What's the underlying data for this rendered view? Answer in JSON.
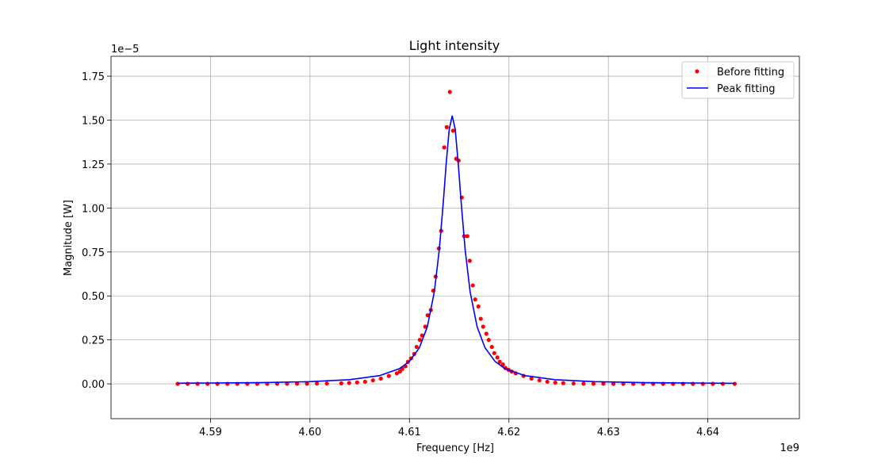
{
  "chart_data": {
    "type": "line",
    "title": "Light intensity",
    "x_label": "Frequency [Hz]",
    "y_label": "Magnitude [W]",
    "x_offset_label": "1e9",
    "y_offset_label": "1e−5",
    "xlim": [
      4.58,
      4.6492
    ],
    "ylim": [
      -0.198,
      1.863
    ],
    "xticks": [
      4.59,
      4.6,
      4.61,
      4.62,
      4.63,
      4.64
    ],
    "xtick_labels": [
      "4.59",
      "4.60",
      "4.61",
      "4.62",
      "4.63",
      "4.64"
    ],
    "yticks": [
      {
        "value": 0,
        "label": "0.00"
      },
      {
        "value": 0.25,
        "label": "0.25"
      },
      {
        "value": 0.5,
        "label": "0.50"
      },
      {
        "value": 0.75,
        "label": "0.75"
      },
      {
        "value": 1,
        "label": "1.00"
      },
      {
        "value": 1.25,
        "label": "1.25"
      },
      {
        "value": 1.5,
        "label": "1.50"
      },
      {
        "value": 1.75,
        "label": "1.75"
      }
    ],
    "grid": true,
    "legend": "upper right",
    "series": [
      {
        "name": "Before fitting",
        "color": "#ff0000",
        "mode": "markers",
        "x": [
          4.5867,
          4.5877,
          4.5887,
          4.5897,
          4.5907,
          4.5917,
          4.5927,
          4.5937,
          4.5947,
          4.5957,
          4.5967,
          4.5977,
          4.5987,
          4.5997,
          4.6007,
          4.6017,
          4.60315,
          4.60394,
          4.60474,
          4.60554,
          4.60633,
          4.60713,
          4.60793,
          4.60873,
          4.60904,
          4.60928,
          4.6096,
          4.60984,
          4.61016,
          4.61048,
          4.61072,
          4.61104,
          4.61127,
          4.61159,
          4.61183,
          4.61215,
          4.61239,
          4.61263,
          4.61295,
          4.61319,
          4.6135,
          4.61375,
          4.61406,
          4.61438,
          4.6147,
          4.61494,
          4.61526,
          4.6155,
          4.61582,
          4.61606,
          4.61637,
          4.61661,
          4.61693,
          4.61717,
          4.61741,
          4.61773,
          4.61797,
          4.61829,
          4.61853,
          4.61884,
          4.61908,
          4.6194,
          4.61964,
          4.61996,
          4.62028,
          4.62068,
          4.62147,
          4.62227,
          4.62307,
          4.62386,
          4.62466,
          4.62546,
          4.6265,
          4.6275,
          4.6285,
          4.6295,
          4.6305,
          4.6315,
          4.6325,
          4.6335,
          4.6345,
          4.6355,
          4.6365,
          4.6375,
          4.6385,
          4.6395,
          4.6405,
          4.6415,
          4.6427
        ],
        "values": [
          0,
          0,
          0,
          0,
          0,
          0,
          0,
          0,
          0,
          0,
          0.001,
          0.001,
          0.001,
          0.001,
          0.002,
          0.002,
          0.003,
          0.005,
          0.008,
          0.012,
          0.02,
          0.03,
          0.045,
          0.06,
          0.07,
          0.085,
          0.1,
          0.125,
          0.145,
          0.17,
          0.21,
          0.25,
          0.275,
          0.325,
          0.39,
          0.42,
          0.53,
          0.61,
          0.77,
          0.87,
          1.345,
          1.46,
          1.66,
          1.44,
          1.28,
          1.27,
          1.06,
          0.84,
          0.84,
          0.7,
          0.56,
          0.48,
          0.44,
          0.37,
          0.325,
          0.285,
          0.25,
          0.21,
          0.175,
          0.15,
          0.125,
          0.11,
          0.09,
          0.08,
          0.07,
          0.06,
          0.045,
          0.03,
          0.02,
          0.012,
          0.007,
          0.004,
          0.002,
          0.001,
          0.001,
          0.001,
          0,
          0,
          0,
          0,
          0,
          0,
          0,
          0,
          0,
          0,
          0,
          0,
          0
        ]
      },
      {
        "name": "Peak fitting",
        "color": "#0000ff",
        "mode": "line",
        "x": [
          4.5867,
          4.595,
          4.6,
          4.604,
          4.607,
          4.609,
          4.61,
          4.611,
          4.6118,
          4.6125,
          4.613,
          4.6134,
          4.6137,
          4.614,
          4.6143,
          4.6146,
          4.6149,
          4.6152,
          4.6156,
          4.6161,
          4.6168,
          4.6176,
          4.6186,
          4.6196,
          4.6216,
          4.6246,
          4.6286,
          4.6336,
          4.6427
        ],
        "values": [
          0.0034,
          0.0069,
          0.0125,
          0.0239,
          0.0469,
          0.0866,
          0.128,
          0.205,
          0.325,
          0.523,
          0.763,
          1.031,
          1.257,
          1.448,
          1.525,
          1.448,
          1.257,
          1.031,
          0.763,
          0.523,
          0.325,
          0.205,
          0.128,
          0.0866,
          0.0469,
          0.0239,
          0.0125,
          0.0069,
          0.0032
        ]
      }
    ]
  }
}
